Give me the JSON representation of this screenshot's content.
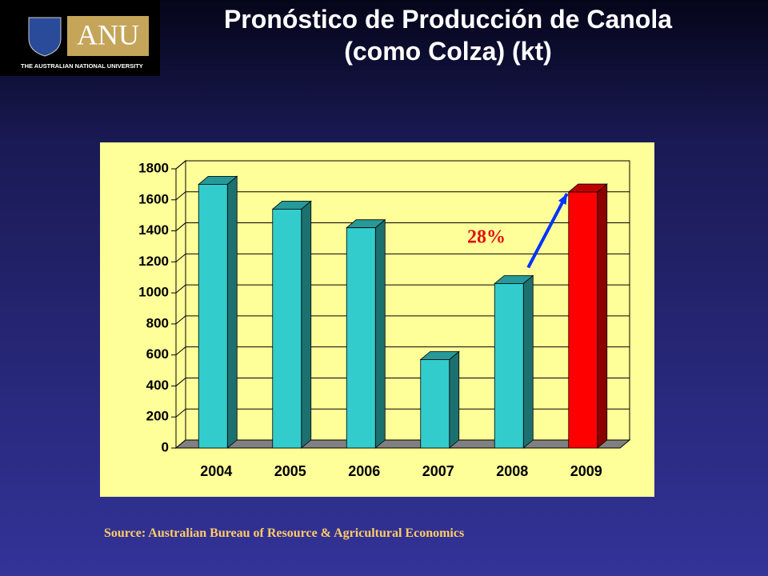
{
  "logo": {
    "mark": "ANU",
    "name": "THE AUSTRALIAN NATIONAL UNIVERSITY"
  },
  "chart_data": {
    "type": "bar3d",
    "title": "Pronóstico de Producción de Canola (como Colza) (kt)",
    "categories": [
      "2004",
      "2005",
      "2006",
      "2007",
      "2008",
      "2009"
    ],
    "values": [
      1700,
      1540,
      1420,
      570,
      1060,
      1650
    ],
    "colors": [
      "#33cccc",
      "#33cccc",
      "#33cccc",
      "#33cccc",
      "#33cccc",
      "#ff0000"
    ],
    "ylim": [
      0,
      1800
    ],
    "yticks": [
      0,
      200,
      400,
      600,
      800,
      1000,
      1200,
      1400,
      1600,
      1800
    ],
    "grid": true,
    "annotation": "28%",
    "source": "Source: Australian Bureau of Resource & Agricultural Economics"
  }
}
